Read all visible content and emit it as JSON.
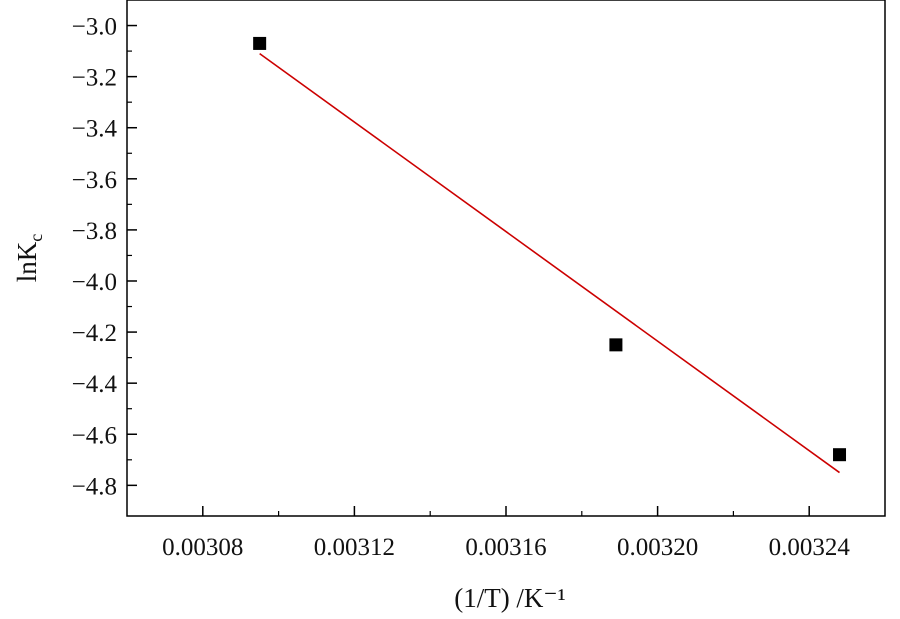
{
  "chart_data": {
    "type": "scatter",
    "title": "",
    "xlabel": "(1/T) /K⁻¹",
    "ylabel": {
      "main": "lnK",
      "sub": "c"
    },
    "xlim": [
      0.00306,
      0.00326
    ],
    "ylim": [
      -4.92,
      -2.9
    ],
    "x_ticks": [
      0.00308,
      0.00312,
      0.00316,
      0.0032,
      0.00324
    ],
    "x_tick_labels": [
      "0.00308",
      "0.00312",
      "0.00316",
      "0.00320",
      "0.00324"
    ],
    "y_ticks": [
      -3.0,
      -3.2,
      -3.4,
      -3.6,
      -3.8,
      -4.0,
      -4.2,
      -4.4,
      -4.6,
      -4.8
    ],
    "y_tick_labels": [
      "−3.0",
      "−3.2",
      "−3.4",
      "−3.6",
      "−3.8",
      "−4.0",
      "−4.2",
      "−4.4",
      "−4.6",
      "−4.8"
    ],
    "grid": false,
    "series": [
      {
        "kind": "scatter",
        "marker": "square",
        "color": "#000000",
        "points": [
          {
            "x": 0.003095,
            "y": -3.07
          },
          {
            "x": 0.003189,
            "y": -4.25
          },
          {
            "x": 0.003248,
            "y": -4.68
          }
        ]
      },
      {
        "kind": "line",
        "color": "#cc0000",
        "points": [
          {
            "x": 0.003095,
            "y": -3.11
          },
          {
            "x": 0.003248,
            "y": -4.75
          }
        ]
      }
    ]
  }
}
